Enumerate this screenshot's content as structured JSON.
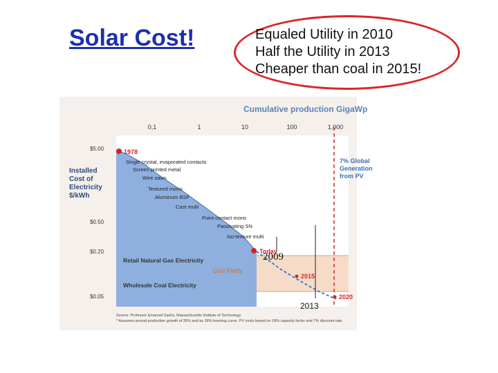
{
  "slide": {
    "title": "Solar Cost!",
    "bullets": [
      "Equaled Utility in 2010",
      "Half  the Utility in 2013",
      "Cheaper than coal in 2015!"
    ],
    "annotations": [
      "2009",
      "2013"
    ]
  },
  "chart_data": {
    "type": "line",
    "title": "Cumulative production GigaWp",
    "ylabel": "Installed Cost of Electricity $/kWh",
    "x_ticks": [
      "0,1",
      "1",
      "10",
      "100",
      "1,000"
    ],
    "y_ticks": [
      "$5.00",
      "$0.50",
      "$0.20",
      "$0.05"
    ],
    "milestones": [
      "1978",
      "Today",
      "2015",
      "2020"
    ],
    "technology_labels": [
      "Single crystal, evaporated contacts",
      "Screen printed metal",
      "Wire saws",
      "Textured  mono",
      "Aluminum BSF",
      "Cast multi",
      "Point contact mono",
      "Passivating SN",
      "Iso-texture multi"
    ],
    "bands": [
      "Retail Natural Gas Electricity",
      "Grid Parity",
      "Wholesale Coal Electricity"
    ],
    "side_note": [
      "7% Global",
      "Generation",
      "from PV"
    ],
    "source": [
      "Source: Professor Emanuel Sachs, Massachusetts Institute of Technology.",
      "* Assumes annual production growth of 35% and as 18% learning curve. PV costs based on 18% capacity factor and 7% discount rate."
    ],
    "colors": {
      "area": "#8fb0df",
      "band": "#f6dcc8",
      "parity": "#e0a06a",
      "red": "#d2232a",
      "blue_dash": "#3f7bc6",
      "title_blue": "#5b82b9"
    }
  }
}
